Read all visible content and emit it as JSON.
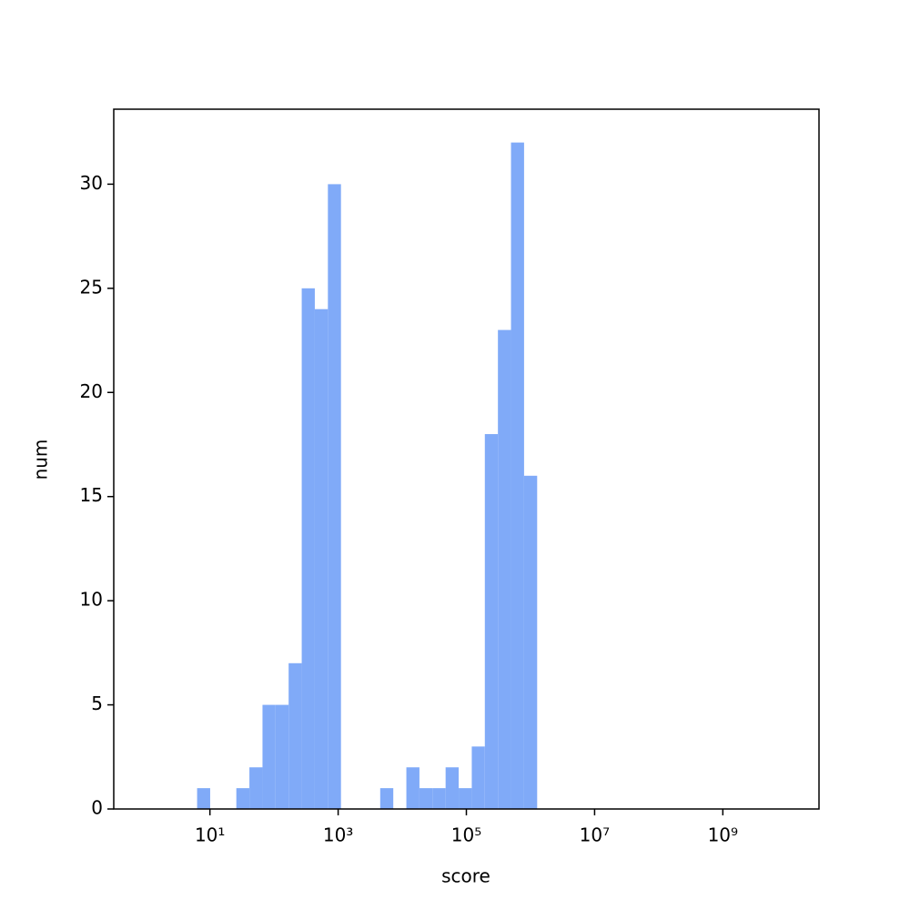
{
  "chart_data": {
    "type": "histogram",
    "x_label": "score",
    "y_label": "num",
    "bins": [
      6.31,
      10.09,
      16.14,
      25.82,
      41.3,
      66.07,
      105.7,
      169.0,
      270.4,
      432.5,
      691.8,
      1107,
      1770,
      2831,
      4529,
      7244,
      11588,
      18535,
      29648,
      47424,
      75858,
      121339,
      194089,
      310456,
      496592,
      794328,
      1270574
    ],
    "values": [
      1,
      0,
      0,
      1,
      2,
      5,
      5,
      7,
      25,
      24,
      30,
      0,
      0,
      0,
      1,
      0,
      2,
      1,
      1,
      2,
      1,
      3,
      18,
      23,
      32,
      16
    ],
    "color": "#80aaf8",
    "xscale": "log",
    "xlim": [
      0.3162,
      31622776602
    ],
    "xticks": [
      {
        "value": 10,
        "label": "10¹"
      },
      {
        "value": 1000,
        "label": "10³"
      },
      {
        "value": 100000,
        "label": "10⁵"
      },
      {
        "value": 10000000,
        "label": "10⁷"
      },
      {
        "value": 1000000000,
        "label": "10⁹"
      }
    ],
    "ylim": [
      0,
      33.6
    ],
    "yticks": [
      0,
      5,
      10,
      15,
      20,
      25,
      30
    ]
  }
}
